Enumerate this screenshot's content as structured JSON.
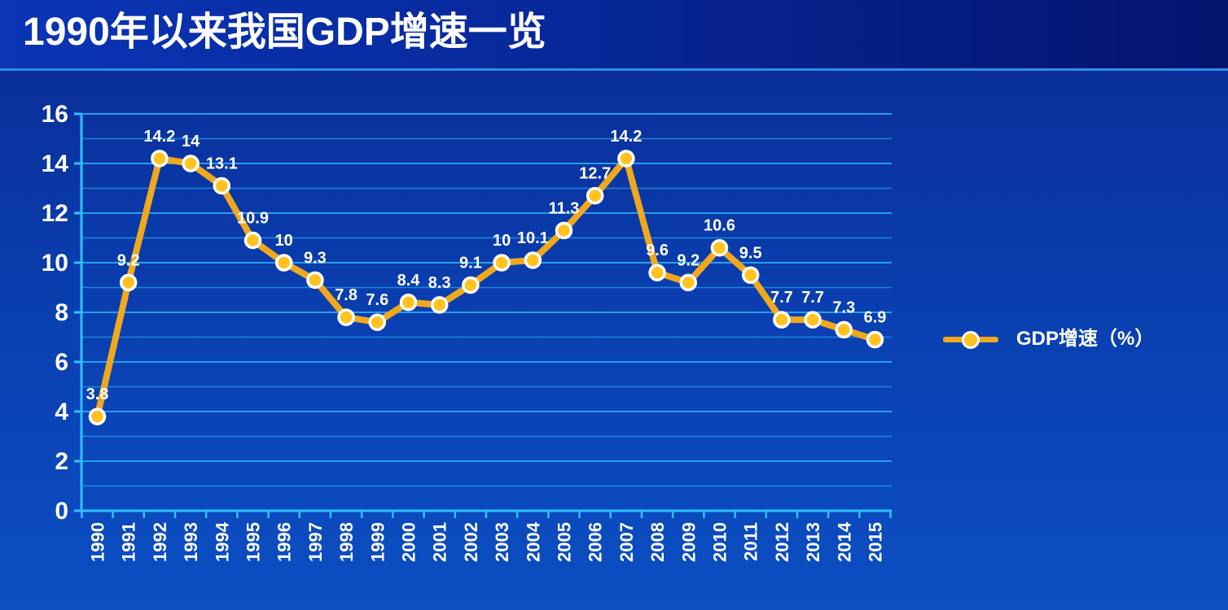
{
  "title": "1990年以来我国GDP增速一览",
  "legend": {
    "label": "GDP增速（%）",
    "placement": "right"
  },
  "colors": {
    "line": "#f0a81c",
    "marker_fill": "#ffc21e",
    "marker_stroke": "#ffffff",
    "grid": "#27a6ee",
    "axis": "#2fc0ff",
    "background": "#0a3fb0"
  },
  "chart_data": {
    "type": "line",
    "title": "1990年以来我国GDP增速一览",
    "xlabel": "",
    "ylabel": "",
    "ylim": [
      0,
      16
    ],
    "yticks": [
      0,
      2,
      4,
      6,
      8,
      10,
      12,
      14,
      16
    ],
    "grid": true,
    "categories": [
      "1990",
      "1991",
      "1992",
      "1993",
      "1994",
      "1995",
      "1996",
      "1997",
      "1998",
      "1999",
      "2000",
      "2001",
      "2002",
      "2003",
      "2004",
      "2005",
      "2006",
      "2007",
      "2008",
      "2009",
      "2010",
      "2011",
      "2012",
      "2013",
      "2014",
      "2015"
    ],
    "series": [
      {
        "name": "GDP增速（%）",
        "values": [
          3.8,
          9.2,
          14.2,
          14,
          13.1,
          10.9,
          10,
          9.3,
          7.8,
          7.6,
          8.4,
          8.3,
          9.1,
          10,
          10.1,
          11.3,
          12.7,
          14.2,
          9.6,
          9.2,
          10.6,
          9.5,
          7.7,
          7.7,
          7.3,
          6.9
        ],
        "labels": [
          "3.8",
          "9.2",
          "14.2",
          "14",
          "13.1",
          "10.9",
          "10",
          "9.3",
          "7.8",
          "7.6",
          "8.4",
          "8.3",
          "9.1",
          "10",
          "10.1",
          "11.3",
          "12.7",
          "14.2",
          "9.6",
          "9.2",
          "10.6",
          "9.5",
          "7.7",
          "7.7",
          "7.3",
          "6.9"
        ]
      }
    ]
  }
}
